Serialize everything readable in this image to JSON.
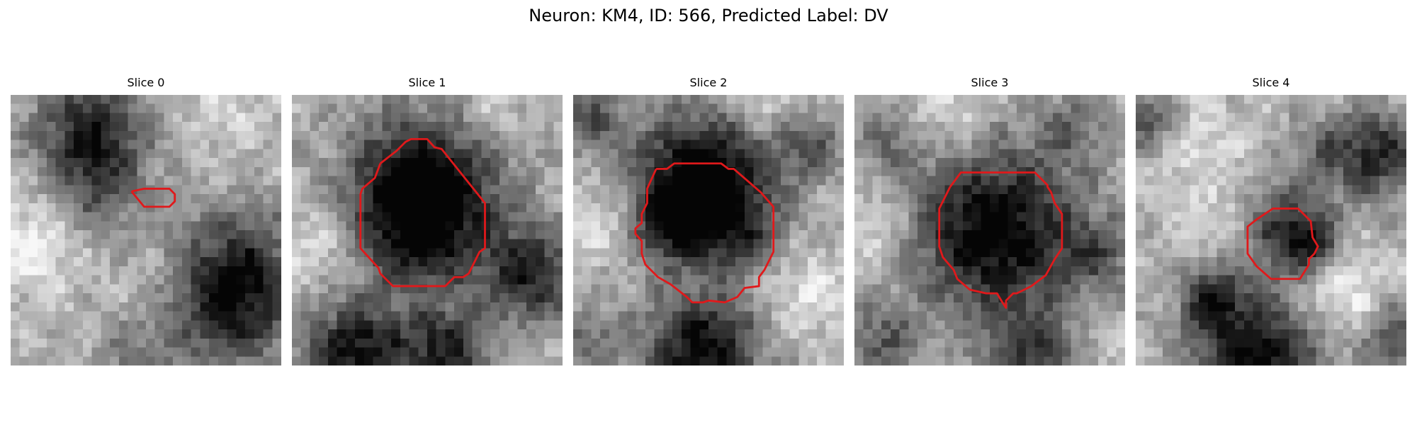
{
  "figure": {
    "title": "Neuron: KM4, ID: 566, Predicted Label: DV",
    "outline_color": "#e0191b",
    "colormap": "grayscale",
    "panels": [
      {
        "label": "Slice 0"
      },
      {
        "label": "Slice 1"
      },
      {
        "label": "Slice 2"
      },
      {
        "label": "Slice 3"
      },
      {
        "label": "Slice 4"
      }
    ]
  }
}
